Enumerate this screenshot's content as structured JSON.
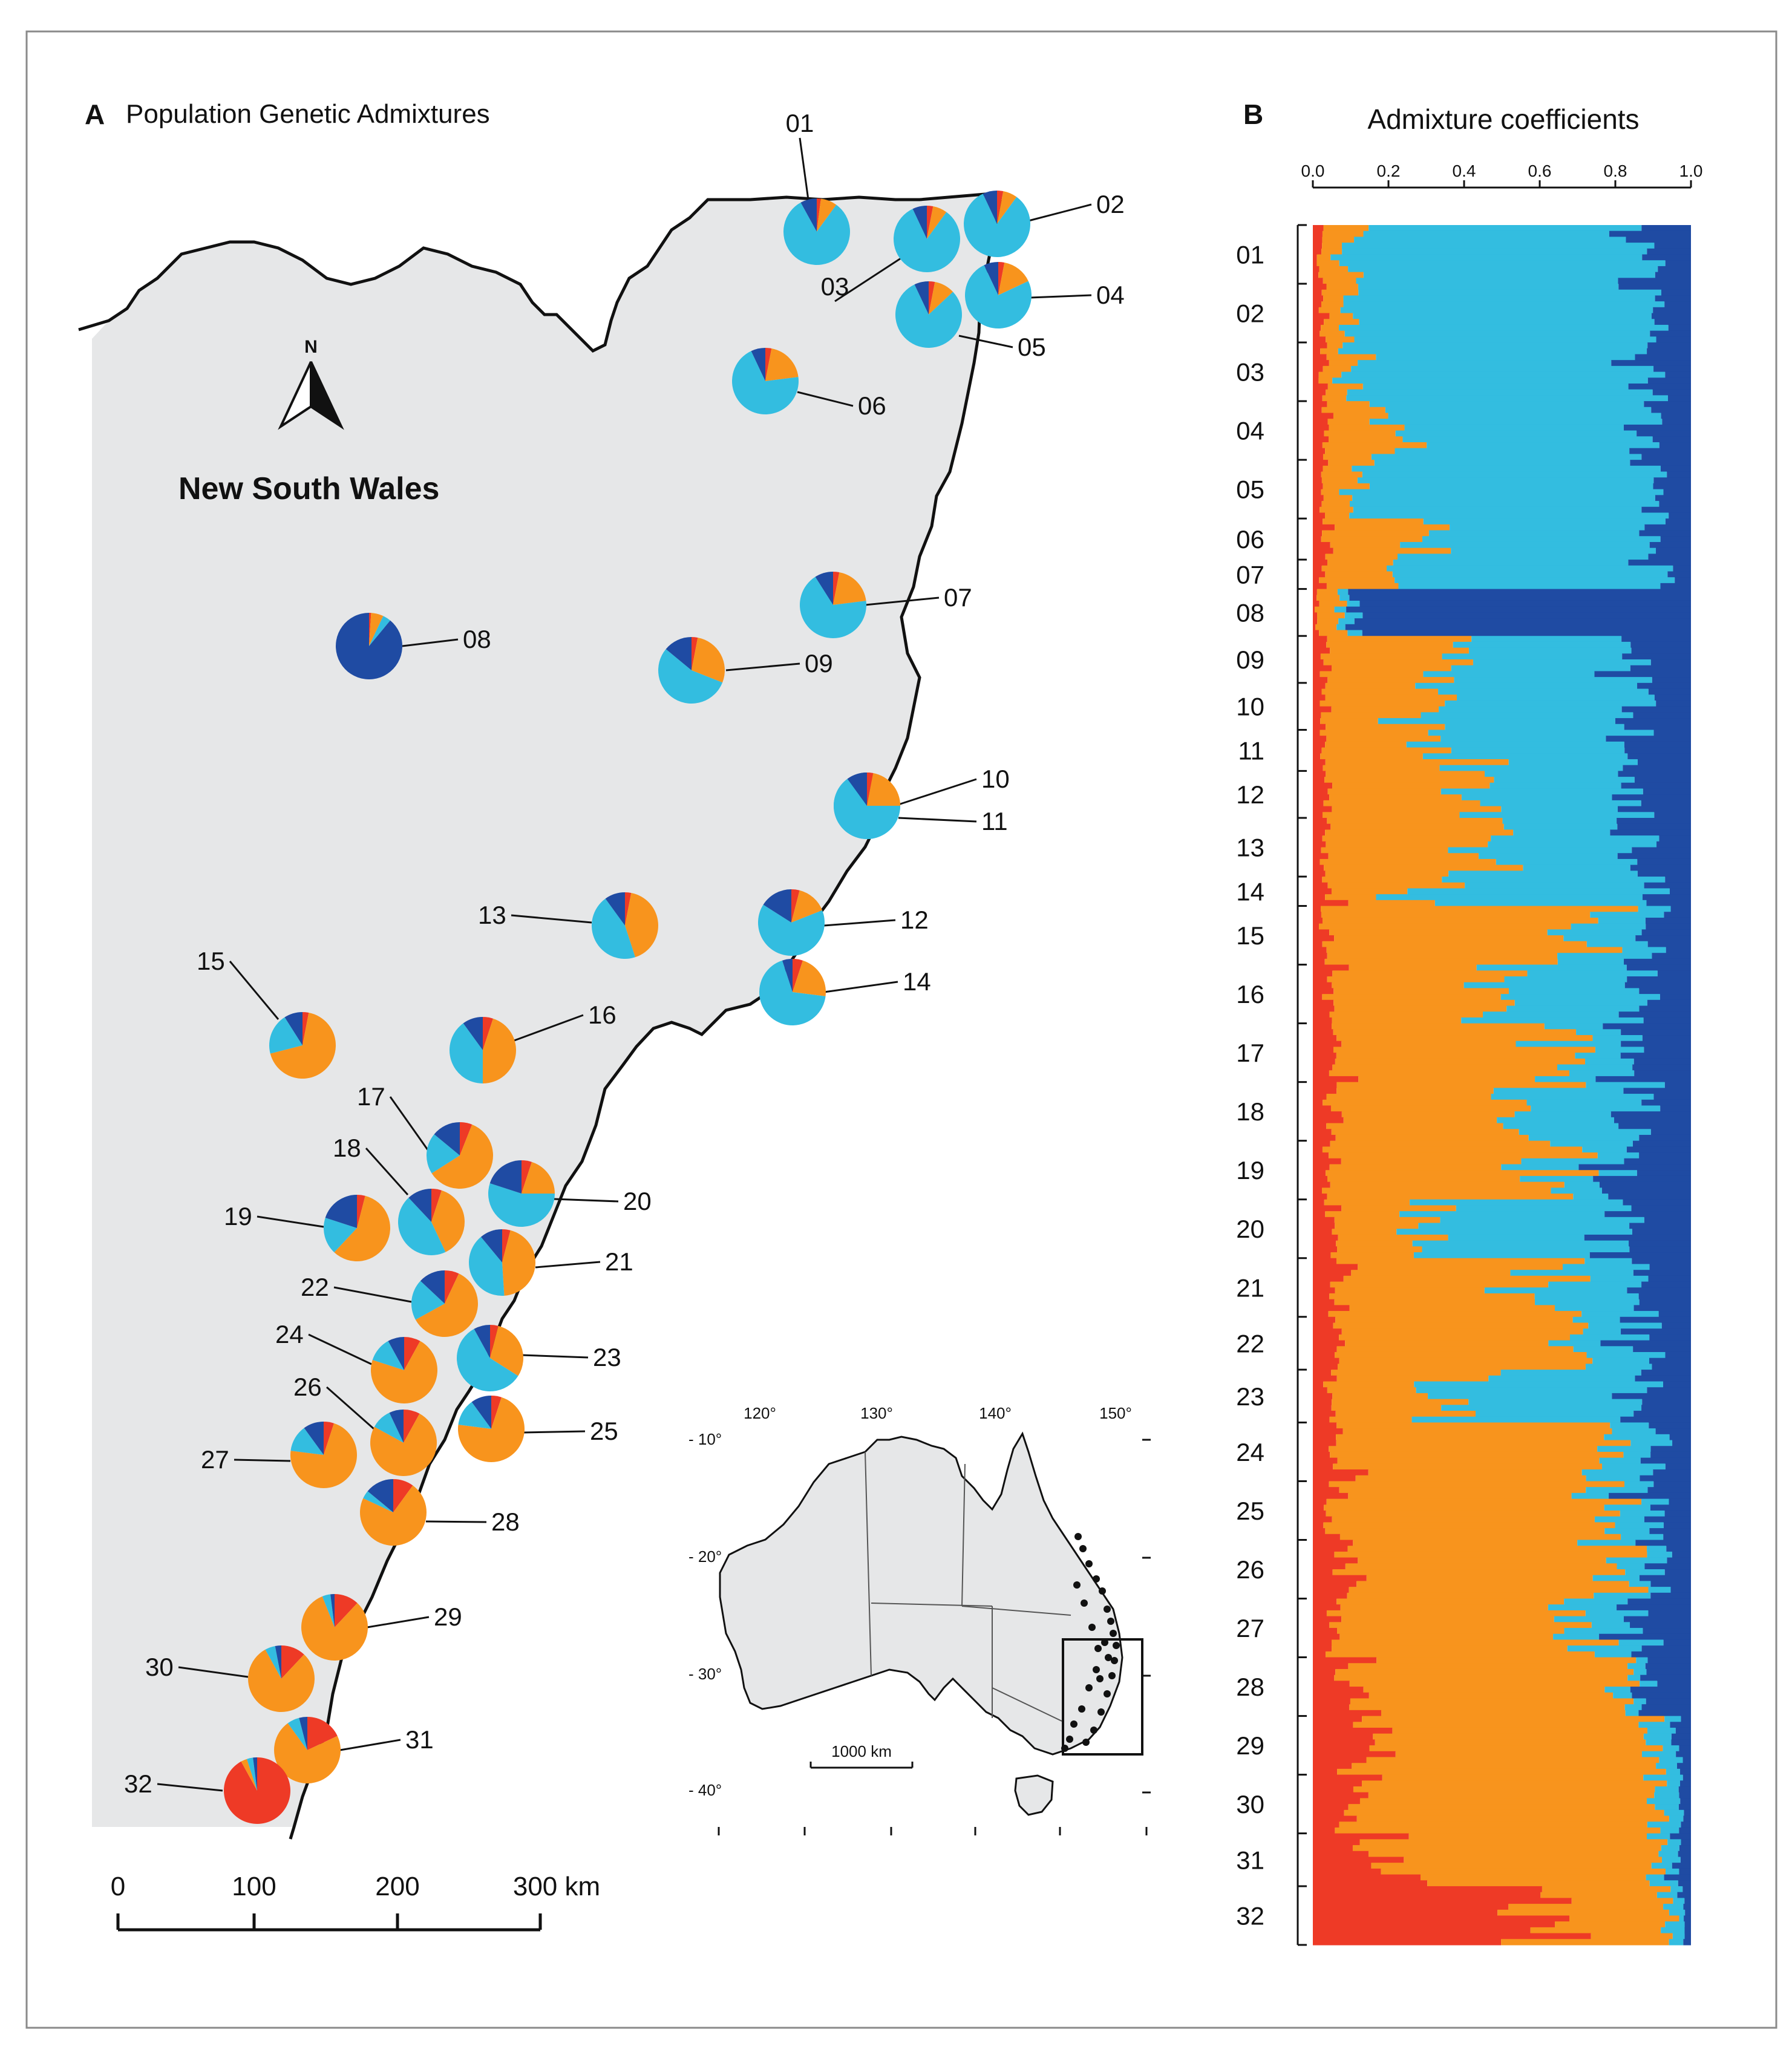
{
  "panel_a": {
    "letter": "A",
    "title": "Population Genetic Admixtures",
    "region_label": "New South Wales",
    "north_label": "N",
    "scale_ticks": [
      "0",
      "100",
      "200",
      "300 km"
    ]
  },
  "panel_b": {
    "letter": "B",
    "title": "Admixture coefficients"
  },
  "inset": {
    "lon_labels": [
      "120°",
      "130°",
      "140°",
      "150°"
    ],
    "lat_labels": [
      "- 10°",
      "- 20°",
      "- 30°",
      "- 40°"
    ],
    "scale_label": "1000 km"
  },
  "colors": {
    "red": "#ee3a26",
    "orange": "#f8941d",
    "lightblue": "#33bde0",
    "darkblue": "#1f4ba3",
    "land": "#e6e7e8",
    "coast": "#111111"
  },
  "chart_data": [
    {
      "type": "pie",
      "title": "Population Genetic Admixtures",
      "cluster_order": [
        "red",
        "orange",
        "lightblue",
        "darkblue"
      ],
      "populations": [
        {
          "id": "01",
          "proportions": [
            0.02,
            0.08,
            0.82,
            0.08
          ]
        },
        {
          "id": "02",
          "proportions": [
            0.03,
            0.07,
            0.83,
            0.07
          ]
        },
        {
          "id": "03",
          "proportions": [
            0.03,
            0.07,
            0.83,
            0.07
          ]
        },
        {
          "id": "04",
          "proportions": [
            0.03,
            0.15,
            0.75,
            0.07
          ]
        },
        {
          "id": "05",
          "proportions": [
            0.03,
            0.1,
            0.8,
            0.07
          ]
        },
        {
          "id": "06",
          "proportions": [
            0.03,
            0.2,
            0.7,
            0.07
          ]
        },
        {
          "id": "07",
          "proportions": [
            0.03,
            0.2,
            0.68,
            0.09
          ]
        },
        {
          "id": "08",
          "proportions": [
            0.01,
            0.06,
            0.04,
            0.89
          ]
        },
        {
          "id": "09",
          "proportions": [
            0.03,
            0.28,
            0.55,
            0.14
          ]
        },
        {
          "id": "10",
          "proportions": [
            0.03,
            0.22,
            0.65,
            0.1
          ]
        },
        {
          "id": "11",
          "proportions": [
            0.03,
            0.22,
            0.65,
            0.1
          ]
        },
        {
          "id": "12",
          "proportions": [
            0.04,
            0.15,
            0.65,
            0.16
          ]
        },
        {
          "id": "13",
          "proportions": [
            0.03,
            0.42,
            0.45,
            0.1
          ]
        },
        {
          "id": "14",
          "proportions": [
            0.05,
            0.22,
            0.68,
            0.05
          ]
        },
        {
          "id": "15",
          "proportions": [
            0.03,
            0.68,
            0.2,
            0.09
          ]
        },
        {
          "id": "16",
          "proportions": [
            0.05,
            0.45,
            0.4,
            0.1
          ]
        },
        {
          "id": "17",
          "proportions": [
            0.06,
            0.6,
            0.2,
            0.14
          ]
        },
        {
          "id": "18",
          "proportions": [
            0.05,
            0.38,
            0.45,
            0.12
          ]
        },
        {
          "id": "19",
          "proportions": [
            0.04,
            0.58,
            0.18,
            0.2
          ]
        },
        {
          "id": "20",
          "proportions": [
            0.05,
            0.2,
            0.55,
            0.2
          ]
        },
        {
          "id": "21",
          "proportions": [
            0.04,
            0.45,
            0.4,
            0.11
          ]
        },
        {
          "id": "22",
          "proportions": [
            0.07,
            0.6,
            0.2,
            0.13
          ]
        },
        {
          "id": "23",
          "proportions": [
            0.04,
            0.3,
            0.58,
            0.08
          ]
        },
        {
          "id": "24",
          "proportions": [
            0.08,
            0.72,
            0.12,
            0.08
          ]
        },
        {
          "id": "25",
          "proportions": [
            0.05,
            0.72,
            0.13,
            0.1
          ]
        },
        {
          "id": "26",
          "proportions": [
            0.08,
            0.75,
            0.1,
            0.07
          ]
        },
        {
          "id": "27",
          "proportions": [
            0.05,
            0.72,
            0.13,
            0.1
          ]
        },
        {
          "id": "28",
          "proportions": [
            0.1,
            0.72,
            0.04,
            0.14
          ]
        },
        {
          "id": "29",
          "proportions": [
            0.12,
            0.82,
            0.04,
            0.02
          ]
        },
        {
          "id": "30",
          "proportions": [
            0.12,
            0.8,
            0.05,
            0.03
          ]
        },
        {
          "id": "31",
          "proportions": [
            0.18,
            0.72,
            0.06,
            0.04
          ]
        },
        {
          "id": "32",
          "proportions": [
            0.92,
            0.03,
            0.03,
            0.02
          ]
        }
      ]
    },
    {
      "type": "bar",
      "orientation": "horizontal",
      "stacked": true,
      "title": "Admixture coefficients",
      "xlim": [
        0,
        1
      ],
      "xticks": [
        "0.0",
        "0.2",
        "0.4",
        "0.6",
        "0.8",
        "1.0"
      ],
      "series": [
        {
          "name": "red",
          "color": "#ee3a26"
        },
        {
          "name": "orange",
          "color": "#f8941d"
        },
        {
          "name": "lightblue",
          "color": "#33bde0"
        },
        {
          "name": "darkblue",
          "color": "#1f4ba3"
        }
      ],
      "groups": [
        {
          "label": "01",
          "n": 10,
          "mean": [
            0.02,
            0.08,
            0.78,
            0.12
          ]
        },
        {
          "label": "02",
          "n": 10,
          "mean": [
            0.03,
            0.07,
            0.8,
            0.1
          ]
        },
        {
          "label": "03",
          "n": 10,
          "mean": [
            0.03,
            0.06,
            0.8,
            0.11
          ]
        },
        {
          "label": "04",
          "n": 10,
          "mean": [
            0.03,
            0.15,
            0.72,
            0.1
          ]
        },
        {
          "label": "05",
          "n": 10,
          "mean": [
            0.03,
            0.1,
            0.78,
            0.09
          ]
        },
        {
          "label": "06",
          "n": 7,
          "mean": [
            0.03,
            0.22,
            0.65,
            0.1
          ]
        },
        {
          "label": "07",
          "n": 5,
          "mean": [
            0.03,
            0.2,
            0.68,
            0.09
          ]
        },
        {
          "label": "08",
          "n": 8,
          "mean": [
            0.01,
            0.06,
            0.04,
            0.89
          ]
        },
        {
          "label": "09",
          "n": 8,
          "mean": [
            0.03,
            0.3,
            0.5,
            0.17
          ]
        },
        {
          "label": "10",
          "n": 8,
          "mean": [
            0.03,
            0.3,
            0.52,
            0.15
          ]
        },
        {
          "label": "11",
          "n": 7,
          "mean": [
            0.03,
            0.32,
            0.5,
            0.15
          ]
        },
        {
          "label": "12",
          "n": 8,
          "mean": [
            0.04,
            0.38,
            0.42,
            0.16
          ]
        },
        {
          "label": "13",
          "n": 10,
          "mean": [
            0.03,
            0.42,
            0.4,
            0.15
          ]
        },
        {
          "label": "14",
          "n": 5,
          "mean": [
            0.05,
            0.25,
            0.6,
            0.1
          ]
        },
        {
          "label": "15",
          "n": 10,
          "mean": [
            0.03,
            0.68,
            0.18,
            0.11
          ]
        },
        {
          "label": "16",
          "n": 10,
          "mean": [
            0.05,
            0.45,
            0.35,
            0.15
          ]
        },
        {
          "label": "17",
          "n": 10,
          "mean": [
            0.06,
            0.6,
            0.18,
            0.16
          ]
        },
        {
          "label": "18",
          "n": 10,
          "mean": [
            0.05,
            0.52,
            0.3,
            0.13
          ]
        },
        {
          "label": "19",
          "n": 10,
          "mean": [
            0.04,
            0.58,
            0.16,
            0.22
          ]
        },
        {
          "label": "20",
          "n": 10,
          "mean": [
            0.05,
            0.25,
            0.5,
            0.2
          ]
        },
        {
          "label": "21",
          "n": 10,
          "mean": [
            0.06,
            0.55,
            0.25,
            0.14
          ]
        },
        {
          "label": "22",
          "n": 9,
          "mean": [
            0.07,
            0.6,
            0.18,
            0.15
          ]
        },
        {
          "label": "23",
          "n": 9,
          "mean": [
            0.04,
            0.3,
            0.55,
            0.11
          ]
        },
        {
          "label": "24",
          "n": 10,
          "mean": [
            0.08,
            0.7,
            0.12,
            0.1
          ]
        },
        {
          "label": "25",
          "n": 10,
          "mean": [
            0.05,
            0.72,
            0.12,
            0.11
          ]
        },
        {
          "label": "26",
          "n": 10,
          "mean": [
            0.08,
            0.74,
            0.1,
            0.08
          ]
        },
        {
          "label": "27",
          "n": 10,
          "mean": [
            0.05,
            0.7,
            0.12,
            0.13
          ]
        },
        {
          "label": "28",
          "n": 10,
          "mean": [
            0.1,
            0.72,
            0.04,
            0.14
          ]
        },
        {
          "label": "29",
          "n": 10,
          "mean": [
            0.12,
            0.8,
            0.05,
            0.03
          ]
        },
        {
          "label": "30",
          "n": 10,
          "mean": [
            0.12,
            0.78,
            0.07,
            0.03
          ]
        },
        {
          "label": "31",
          "n": 9,
          "mean": [
            0.18,
            0.72,
            0.06,
            0.04
          ]
        },
        {
          "label": "32",
          "n": 10,
          "mean": [
            0.65,
            0.3,
            0.03,
            0.02
          ]
        }
      ]
    }
  ]
}
